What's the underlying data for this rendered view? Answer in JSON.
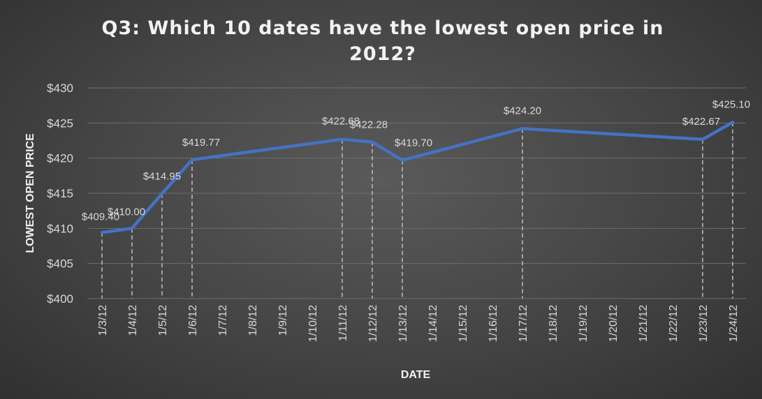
{
  "chart_data": {
    "type": "line",
    "title_lines": [
      "Q3: Which 10 dates have the lowest open price in",
      "2012?"
    ],
    "xlabel": "DATE",
    "ylabel": "LOWEST OPEN PRICE",
    "ylim": [
      400,
      430
    ],
    "yticks": [
      400,
      405,
      410,
      415,
      420,
      425,
      430
    ],
    "ytick_labels": [
      "$400",
      "$405",
      "$410",
      "$415",
      "$420",
      "$425",
      "$430"
    ],
    "categories": [
      "1/3/12",
      "1/4/12",
      "1/5/12",
      "1/6/12",
      "1/7/12",
      "1/8/12",
      "1/9/12",
      "1/10/12",
      "1/11/12",
      "1/12/12",
      "1/13/12",
      "1/14/12",
      "1/15/12",
      "1/16/12",
      "1/17/12",
      "1/18/12",
      "1/19/12",
      "1/20/12",
      "1/21/12",
      "1/22/12",
      "1/23/12",
      "1/24/12"
    ],
    "series": [
      {
        "points": [
          {
            "x": "1/3/12",
            "y": 409.4,
            "label": "$409.40"
          },
          {
            "x": "1/4/12",
            "y": 410.0,
            "label": "$410.00"
          },
          {
            "x": "1/5/12",
            "y": 414.95,
            "label": "$414.95"
          },
          {
            "x": "1/6/12",
            "y": 419.77,
            "label": "$419.77"
          },
          {
            "x": "1/11/12",
            "y": 422.68,
            "label": "$422.68"
          },
          {
            "x": "1/12/12",
            "y": 422.28,
            "label": "$422.28"
          },
          {
            "x": "1/13/12",
            "y": 419.7,
            "label": "$419.70"
          },
          {
            "x": "1/17/12",
            "y": 424.2,
            "label": "$424.20"
          },
          {
            "x": "1/23/12",
            "y": 422.67,
            "label": "$422.67"
          },
          {
            "x": "1/24/12",
            "y": 425.1,
            "label": "$425.10"
          }
        ]
      }
    ],
    "colors": {
      "line": "#4472c4",
      "grid": "#6e6e6e",
      "drop_line": "#bfbfbf"
    },
    "grid": true,
    "legend": "none"
  }
}
